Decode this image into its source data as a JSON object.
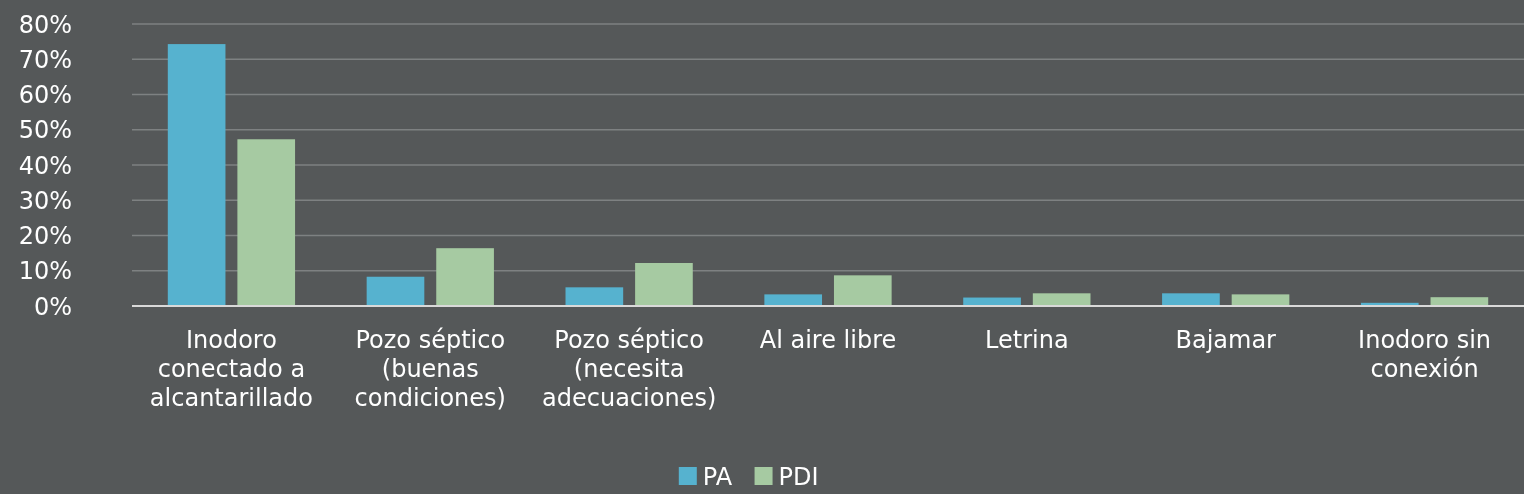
{
  "chart_data": {
    "type": "bar",
    "categories": [
      "Inodoro conectado a alcantarillado",
      "Pozo séptico (buenas condiciones)",
      "Pozo séptico (necesita adecuaciones)",
      "Al aire libre",
      "Letrina",
      "Bajamar",
      "Inodoro sin conexión"
    ],
    "series": [
      {
        "name": "PA",
        "color": "#56b2cf",
        "values": [
          74.3,
          8.3,
          5.3,
          3.3,
          2.4,
          3.6,
          0.9
        ]
      },
      {
        "name": "PDI",
        "color": "#a6caa2",
        "values": [
          47.3,
          16.4,
          12.2,
          8.7,
          3.6,
          3.3,
          2.5
        ]
      }
    ],
    "ylim": [
      0,
      80
    ],
    "yticks": [
      {
        "value": 0,
        "label": "0%"
      },
      {
        "value": 10,
        "label": "10%"
      },
      {
        "value": 20,
        "label": "20%"
      },
      {
        "value": 30,
        "label": "30%"
      },
      {
        "value": 40,
        "label": "40%"
      },
      {
        "value": 50,
        "label": "50%"
      },
      {
        "value": 60,
        "label": "60%"
      },
      {
        "value": 70,
        "label": "70%"
      },
      {
        "value": 80,
        "label": "80%"
      }
    ],
    "grid": "y",
    "legend": "bottom"
  }
}
